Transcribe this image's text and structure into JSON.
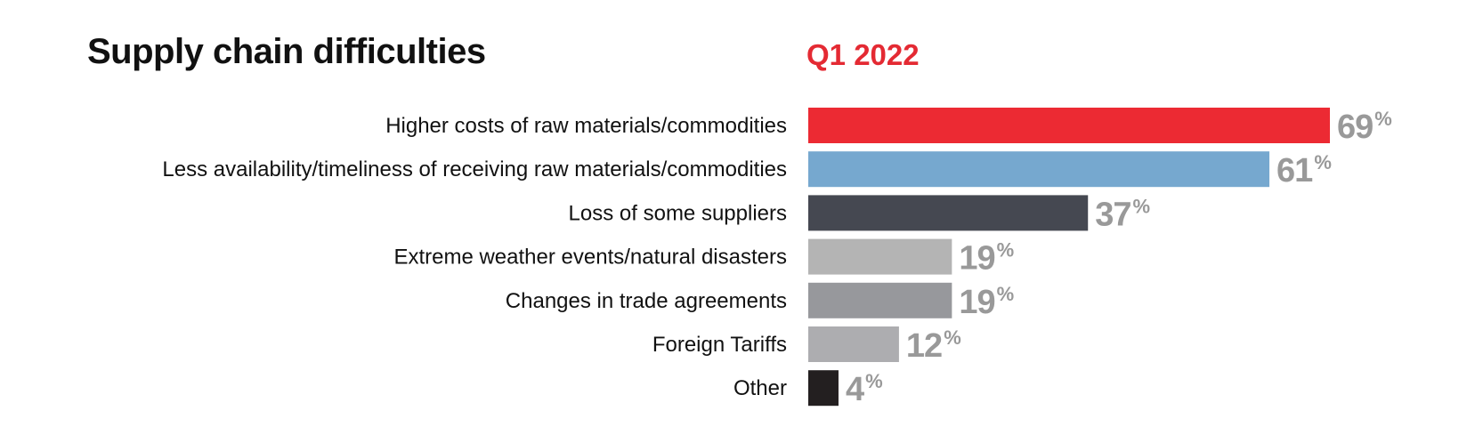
{
  "chart_data": {
    "type": "bar",
    "orientation": "horizontal",
    "title": "Supply chain difficulties",
    "subtitle": "Q1 2022",
    "value_suffix": "%",
    "xlim": [
      0,
      69
    ],
    "grid": false,
    "legend": "none",
    "categories": [
      "Higher costs of raw materials/commodities",
      "Less availability/timeliness of receiving raw materials/commodities",
      "Loss of some suppliers",
      "Extreme weather events/natural disasters",
      "Changes in trade agreements",
      "Foreign Tariffs",
      "Other"
    ],
    "values": [
      69,
      61,
      37,
      19,
      19,
      12,
      4
    ],
    "colors": [
      "#ec2a33",
      "#76a8cf",
      "#454851",
      "#b4b4b4",
      "#97989c",
      "#adadb0",
      "#231f20"
    ]
  }
}
